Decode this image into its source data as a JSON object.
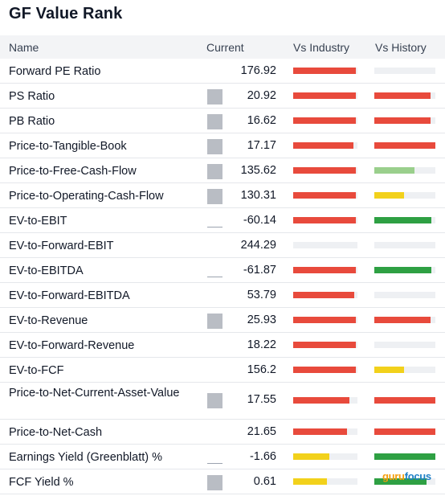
{
  "title": "GF Value Rank",
  "headers": {
    "name": "Name",
    "current": "Current",
    "vs_industry": "Vs Industry",
    "vs_history": "Vs History"
  },
  "colors": {
    "red": "#e84a3c",
    "green": "#2ea043",
    "light_green": "#9acf8c",
    "yellow": "#f2d11b",
    "gray_track": "#eef0f3"
  },
  "rows": [
    {
      "name": "Forward PE Ratio",
      "value": "176.92",
      "spark": "none",
      "ind": 0.97,
      "ind_color": "red",
      "hist": 0,
      "hist_color": "none"
    },
    {
      "name": "PS Ratio",
      "value": "20.92",
      "spark": "box",
      "ind": 0.97,
      "ind_color": "red",
      "hist": 0.92,
      "hist_color": "red"
    },
    {
      "name": "PB Ratio",
      "value": "16.62",
      "spark": "box",
      "ind": 0.97,
      "ind_color": "red",
      "hist": 0.92,
      "hist_color": "red"
    },
    {
      "name": "Price-to-Tangible-Book",
      "value": "17.17",
      "spark": "box",
      "ind": 0.94,
      "ind_color": "red",
      "hist": 1.0,
      "hist_color": "red"
    },
    {
      "name": "Price-to-Free-Cash-Flow",
      "value": "135.62",
      "spark": "box",
      "ind": 0.97,
      "ind_color": "red",
      "hist": 0.66,
      "hist_color": "light_green"
    },
    {
      "name": "Price-to-Operating-Cash-Flow",
      "value": "130.31",
      "spark": "box",
      "ind": 0.97,
      "ind_color": "red",
      "hist": 0.49,
      "hist_color": "yellow"
    },
    {
      "name": "EV-to-EBIT",
      "value": "-60.14",
      "spark": "line",
      "ind": 0.97,
      "ind_color": "red",
      "hist": 0.93,
      "hist_color": "green"
    },
    {
      "name": "EV-to-Forward-EBIT",
      "value": "244.29",
      "spark": "none",
      "ind": 0,
      "ind_color": "none",
      "hist": 0,
      "hist_color": "none"
    },
    {
      "name": "EV-to-EBITDA",
      "value": "-61.87",
      "spark": "line",
      "ind": 0.97,
      "ind_color": "red",
      "hist": 0.93,
      "hist_color": "green"
    },
    {
      "name": "EV-to-Forward-EBITDA",
      "value": "53.79",
      "spark": "none",
      "ind": 0.95,
      "ind_color": "red",
      "hist": 0,
      "hist_color": "none"
    },
    {
      "name": "EV-to-Revenue",
      "value": "25.93",
      "spark": "box",
      "ind": 0.97,
      "ind_color": "red",
      "hist": 0.92,
      "hist_color": "red"
    },
    {
      "name": "EV-to-Forward-Revenue",
      "value": "18.22",
      "spark": "none",
      "ind": 0.97,
      "ind_color": "red",
      "hist": 0,
      "hist_color": "none"
    },
    {
      "name": "EV-to-FCF",
      "value": "156.2",
      "spark": "none",
      "ind": 0.97,
      "ind_color": "red",
      "hist": 0.49,
      "hist_color": "yellow"
    },
    {
      "name": "Price-to-Net-Current-Asset-Value",
      "value": "17.55",
      "spark": "box",
      "ind": 0.87,
      "ind_color": "red",
      "hist": 1.0,
      "hist_color": "red",
      "tall": true
    },
    {
      "name": "Price-to-Net-Cash",
      "value": "21.65",
      "spark": "none",
      "ind": 0.84,
      "ind_color": "red",
      "hist": 1.0,
      "hist_color": "red"
    },
    {
      "name": "Earnings Yield (Greenblatt) %",
      "value": "-1.66",
      "spark": "line",
      "ind": 0.56,
      "ind_color": "yellow",
      "hist": 1.0,
      "hist_color": "green"
    },
    {
      "name": "FCF Yield %",
      "value": "0.61",
      "spark": "box",
      "ind": 0.53,
      "ind_color": "yellow",
      "hist": 0.86,
      "hist_color": "green"
    }
  ],
  "logo": {
    "part1": "guru",
    "part2": "focus"
  }
}
